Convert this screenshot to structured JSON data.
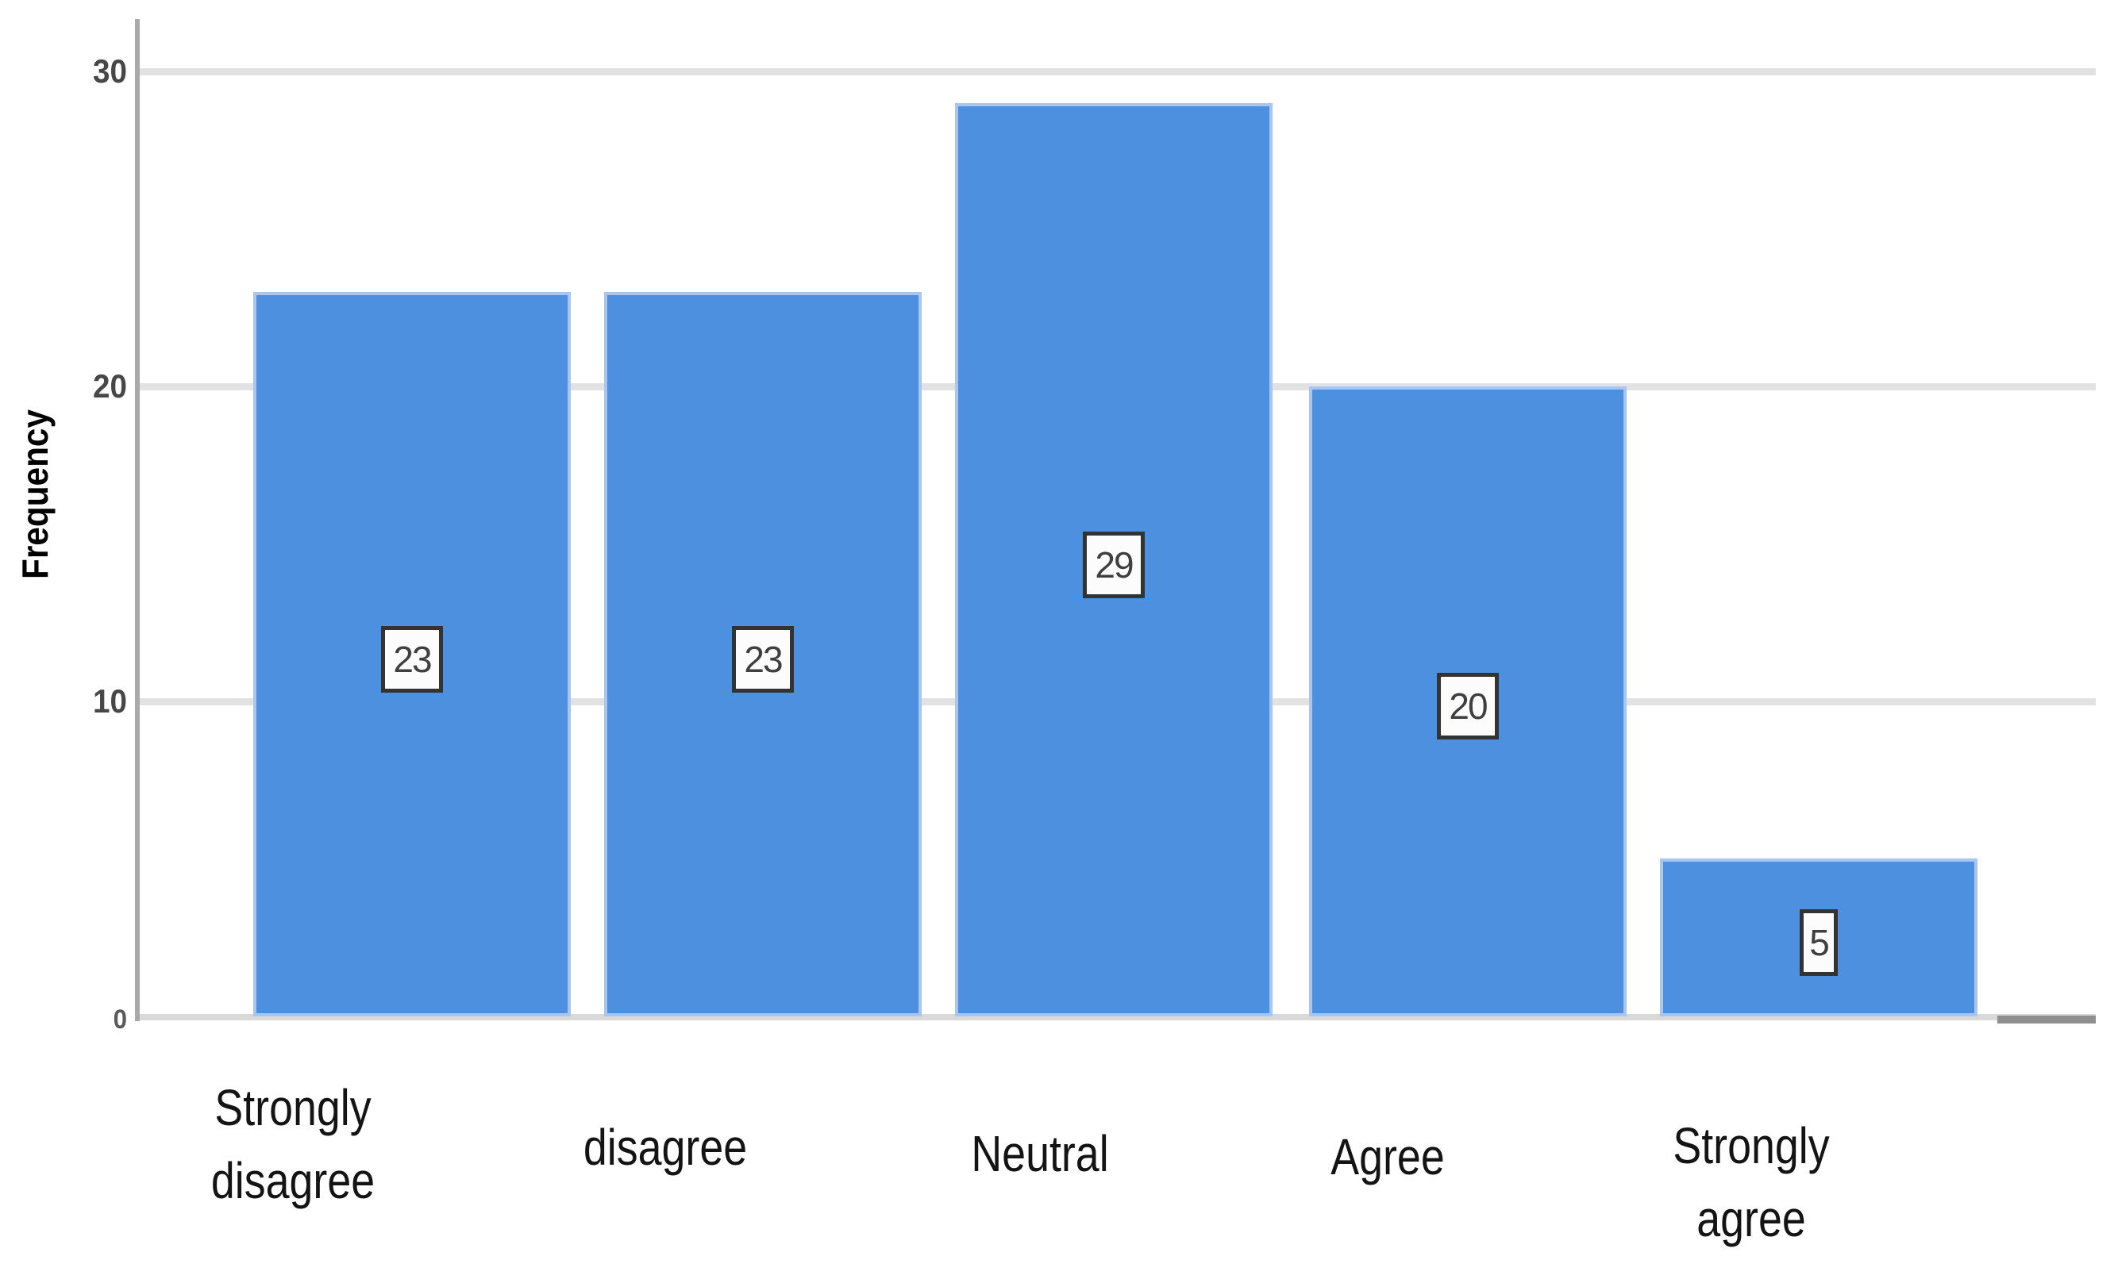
{
  "chart_data": {
    "type": "bar",
    "title": "",
    "xlabel": "",
    "ylabel": "Frequency",
    "categories": [
      "Strongly disagree",
      "disagree",
      "Neutral",
      "Agree",
      "Strongly agree"
    ],
    "values": [
      23,
      23,
      29,
      20,
      5
    ],
    "value_labels": [
      "23",
      "23",
      "29",
      "20",
      "5"
    ],
    "yticks": [
      0,
      10,
      20,
      30
    ],
    "ylim": [
      0,
      30
    ],
    "grid": "horizontal-light",
    "legend": "none",
    "colors": {
      "bar_fill": "#4e90e0",
      "bar_edge": "#b9d0f2",
      "gridline": "#e2e2e2",
      "y_axis_line": "#a9a9a9",
      "baseline": "#d9d9d9",
      "axis_end_dash": "#8f8f8f",
      "tick_text": "#474747",
      "category_text": "#141414",
      "value_box_bg": "#fcfcfc",
      "value_box_border": "#333333",
      "value_box_text": "#3f3f3f"
    }
  }
}
